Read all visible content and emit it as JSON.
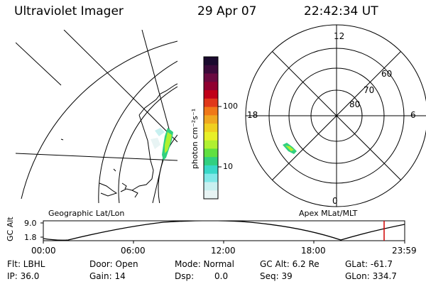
{
  "header": {
    "instrument": "Ultraviolet Imager",
    "date": "29 Apr 07",
    "time": "22:42:34 UT"
  },
  "colorbar": {
    "unit_label": "photon cm⁻²s⁻¹",
    "tick_labels": [
      "100",
      "10"
    ],
    "colors": [
      "#1a0a2e",
      "#3b0a3a",
      "#6a0a40",
      "#900030",
      "#c00018",
      "#e0381a",
      "#f07818",
      "#f0a820",
      "#f0d020",
      "#e8f028",
      "#b0f030",
      "#60e040",
      "#30d080",
      "#38d8c8",
      "#80e8e8",
      "#c8f0f0",
      "#e8f4f4"
    ]
  },
  "left_panel": {
    "label": "Geographic Lat/Lon"
  },
  "right_panel": {
    "label": "Apex MLat/MLT",
    "mlt_labels": {
      "top": "12",
      "bottom": "0",
      "left": "18",
      "right": "6"
    },
    "lat_labels": [
      "60",
      "70",
      "80"
    ]
  },
  "altitude_plot": {
    "ylabel": "GC Alt",
    "yticks": [
      "9.0",
      "1.8"
    ],
    "xticks": [
      "00:00",
      "06:00",
      "12:00",
      "18:00",
      "23:59"
    ]
  },
  "footer": {
    "row1": {
      "filter": "Flt: LBHL",
      "door": "Door: Open",
      "mode": "Mode: Normal",
      "gc_alt": "GC Alt: 6.2 Re",
      "glat": "GLat: -61.7"
    },
    "row2": {
      "ip": "IP: 36.0",
      "gain": "Gain: 14",
      "dsp_label": "Dsp:",
      "dsp_value": "0.0",
      "seq": "Seq: 39",
      "glon": "GLon: 334.7"
    }
  }
}
